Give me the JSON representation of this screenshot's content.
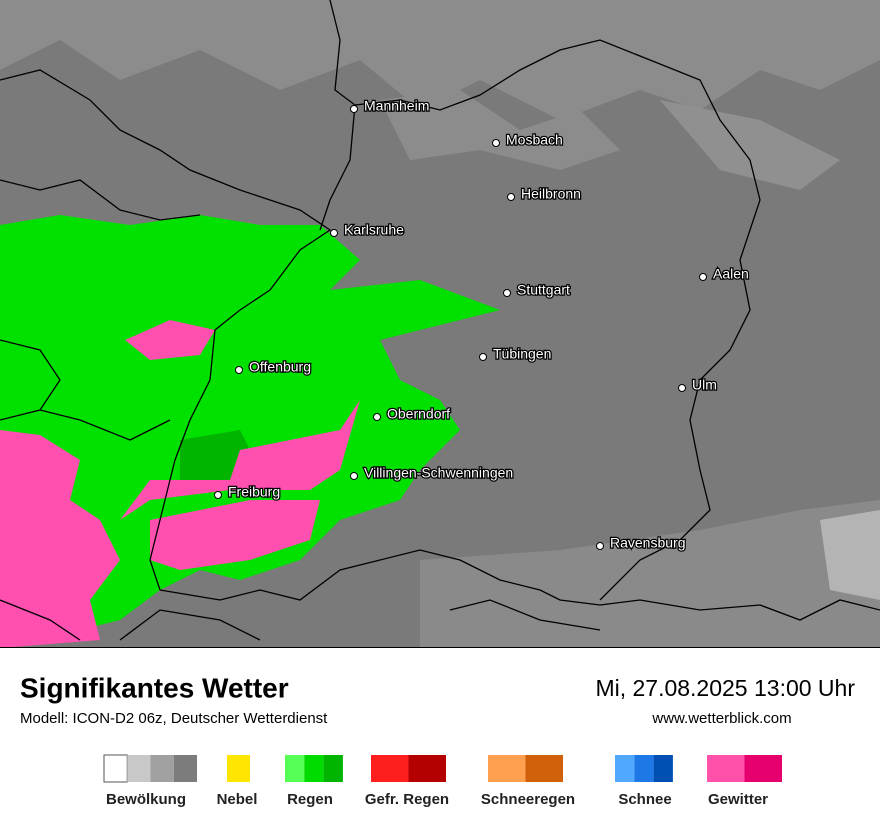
{
  "header": {
    "title": "Signifikantes Wetter",
    "subtitle": "Modell: ICON-D2 06z, Deutscher Wetterdienst",
    "datetime": "Mi, 27.08.2025 13:00 Uhr",
    "website": "www.wetterblick.com"
  },
  "cities": [
    "Mannheim",
    "Mosbach",
    "Heilbronn",
    "Karlsruhe",
    "Aalen",
    "Stuttgart",
    "Tübingen",
    "Offenburg",
    "Ulm",
    "Oberndorf",
    "Villingen-Schwenningen",
    "Freiburg",
    "Ravensburg"
  ],
  "legend": [
    {
      "label": "Bewölkung",
      "colors": [
        "#ffffff",
        "#c8c8c8",
        "#a0a0a0",
        "#7c7c7c"
      ]
    },
    {
      "label": "Nebel",
      "colors": [
        "#ffe600"
      ]
    },
    {
      "label": "Regen",
      "colors": [
        "#55ff55",
        "#00dc00",
        "#00b400"
      ]
    },
    {
      "label": "Gefr. Regen",
      "colors": [
        "#ff1e1e",
        "#b40000"
      ]
    },
    {
      "label": "Schneeregen",
      "colors": [
        "#ffa050",
        "#d0600a"
      ]
    },
    {
      "label": "Schnee",
      "colors": [
        "#50a8ff",
        "#1e78e6",
        "#0050b4"
      ]
    },
    {
      "label": "Gewitter",
      "colors": [
        "#ff50aa",
        "#e6006e"
      ]
    }
  ]
}
